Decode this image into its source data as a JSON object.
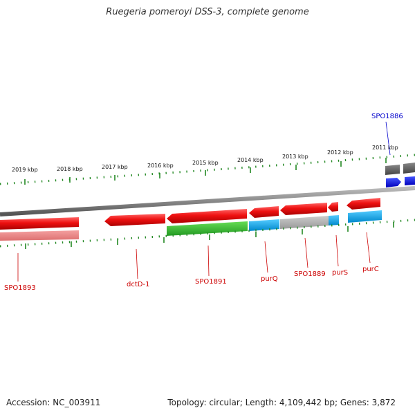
{
  "title": "Ruegeria pomeroyi DSS-3, complete genome",
  "footer": {
    "accession": "Accession: NC_003911",
    "summary": "Topology: circular; Length: 4,109,442 bp; Genes: 3,872"
  },
  "scale_labels": [
    "2019 kbp",
    "2018 kbp",
    "2017 kbp",
    "2016 kbp",
    "2015 kbp",
    "2014 kbp",
    "2013 kbp",
    "2012 kbp",
    "2011 kbp"
  ],
  "gene_labels": [
    {
      "name": "SPO1893",
      "color": "#cc0000"
    },
    {
      "name": "dctD-1",
      "color": "#cc0000"
    },
    {
      "name": "SPO1891",
      "color": "#cc0000"
    },
    {
      "name": "purQ",
      "color": "#cc0000"
    },
    {
      "name": "SPO1889",
      "color": "#cc0000"
    },
    {
      "name": "purS",
      "color": "#cc0000"
    },
    {
      "name": "purC",
      "color": "#cc0000"
    },
    {
      "name": "SPO1886",
      "color": "#0000cc"
    }
  ],
  "colors": {
    "cds_reverse": "#ee1111",
    "cog_green": "#33bb33",
    "cog_cyan": "#11aaee",
    "cog_grey": "#aaaaaa",
    "cog_pink": "#ee8888",
    "cds_forward": "#1111dd",
    "backbone": "#888888",
    "ticks": "#228822"
  }
}
